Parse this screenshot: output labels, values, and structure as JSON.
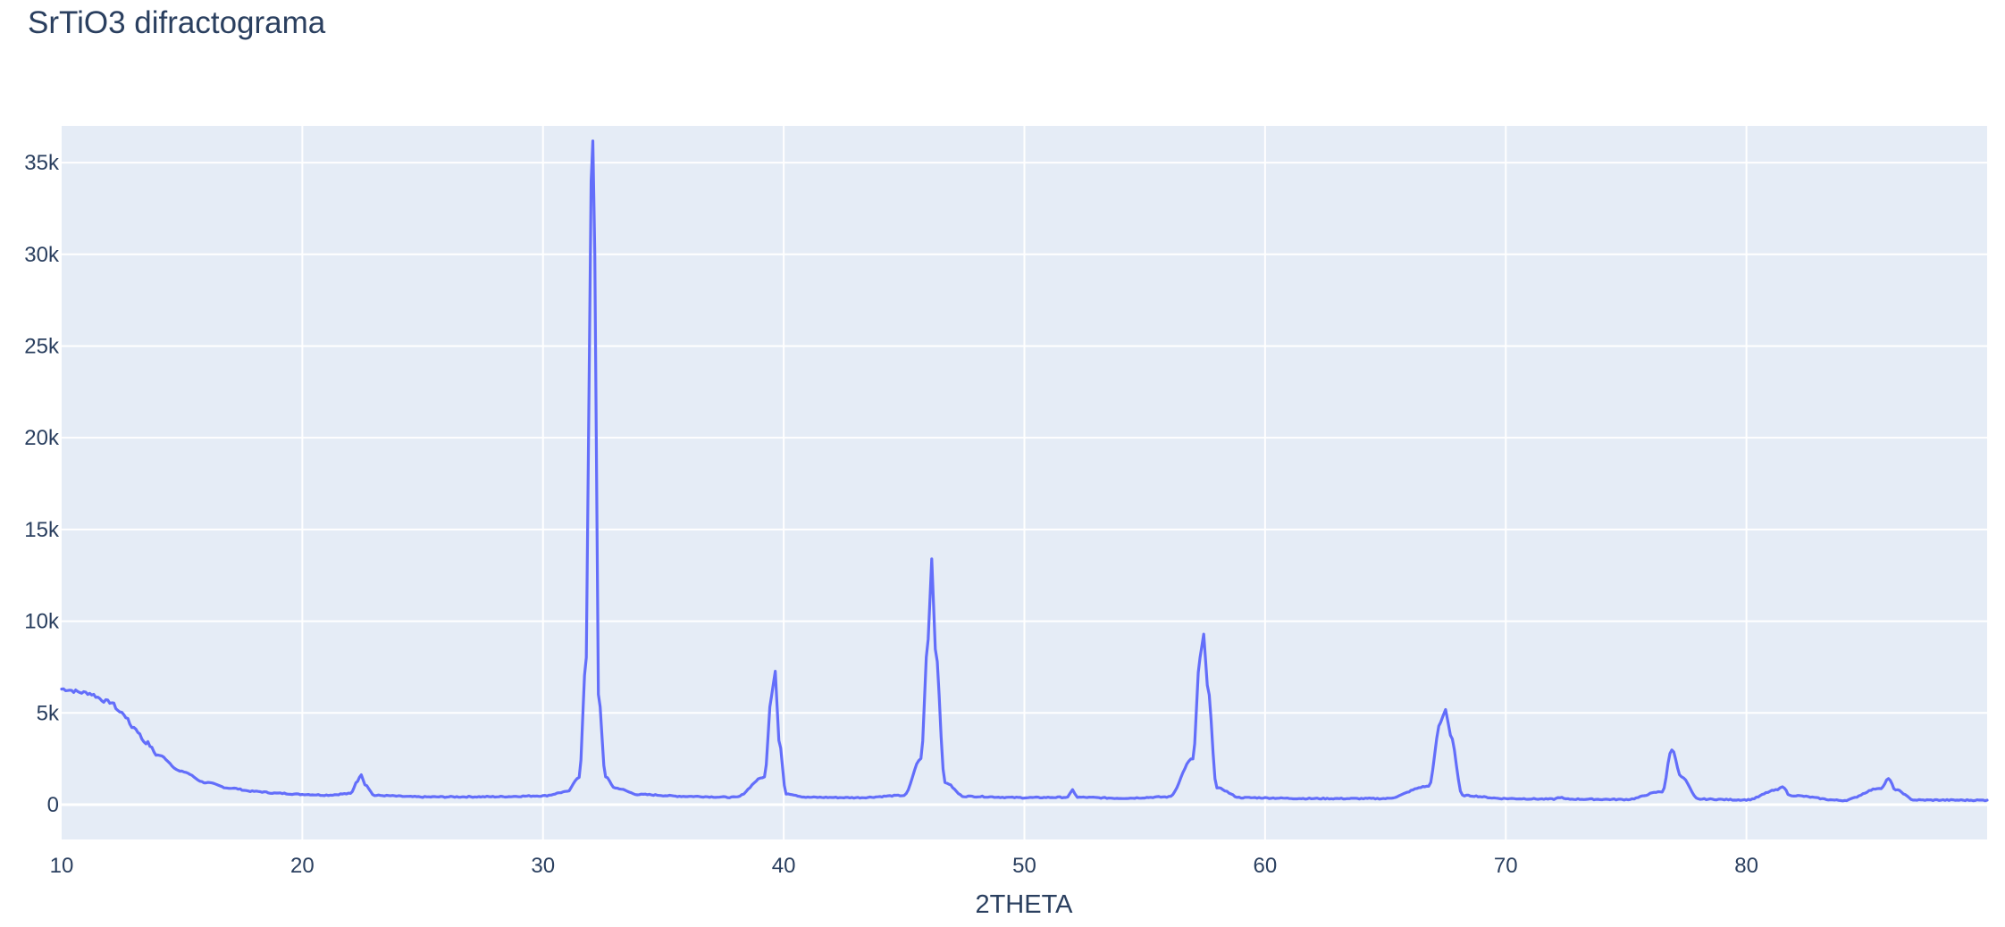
{
  "chart_data": {
    "type": "line",
    "title": "SrTiO3 difractograma",
    "xlabel": "2THETA",
    "ylabel": "",
    "xlim": [
      10,
      90
    ],
    "ylim": [
      -1900,
      37000
    ],
    "x_ticks": [
      10,
      20,
      30,
      40,
      50,
      60,
      70,
      80
    ],
    "x_tick_labels": [
      "10",
      "20",
      "30",
      "40",
      "50",
      "60",
      "70",
      "80"
    ],
    "y_ticks": [
      0,
      5000,
      10000,
      15000,
      20000,
      25000,
      30000,
      35000
    ],
    "y_tick_labels": [
      "0",
      "5k",
      "10k",
      "15k",
      "20k",
      "25k",
      "30k",
      "35k"
    ],
    "grid": true,
    "colors": {
      "line": "#636efa",
      "plot_bg": "#e5ecf6",
      "grid": "#ffffff",
      "text": "#2a3f5f"
    },
    "series": [
      {
        "x": [
          10.0,
          11.0,
          12.0,
          12.5,
          13.0,
          13.5,
          14.0,
          15.0,
          16.0,
          17.0,
          18.0,
          19.0,
          20.0,
          21.0,
          22.0,
          22.3,
          22.45,
          22.6,
          23.0,
          25.0,
          28.0,
          30.0,
          31.0,
          31.5,
          31.8,
          32.0,
          32.07,
          32.15,
          32.3,
          32.6,
          33.0,
          34.0,
          36.0,
          38.0,
          39.2,
          39.5,
          39.65,
          39.8,
          40.1,
          41.0,
          43.0,
          45.0,
          45.7,
          46.0,
          46.15,
          46.3,
          46.7,
          47.5,
          50.0,
          51.8,
          52.0,
          52.2,
          54.0,
          56.0,
          57.0,
          57.3,
          57.45,
          57.6,
          58.0,
          59.0,
          62.0,
          65.0,
          66.8,
          67.3,
          67.5,
          67.7,
          68.2,
          70.0,
          72.0,
          72.25,
          72.5,
          75.0,
          76.5,
          76.9,
          77.3,
          78.0,
          80.0,
          81.3,
          81.5,
          81.8,
          84.0,
          85.6,
          85.9,
          86.2,
          87.0,
          90.0
        ],
        "y": [
          6300,
          6100,
          5600,
          5000,
          4200,
          3400,
          2700,
          1800,
          1200,
          900,
          720,
          620,
          560,
          520,
          600,
          1300,
          1650,
          1100,
          500,
          420,
          430,
          480,
          700,
          1500,
          8000,
          34000,
          36200,
          30000,
          6000,
          1500,
          900,
          550,
          450,
          400,
          1500,
          6000,
          7300,
          3500,
          600,
          400,
          380,
          500,
          2500,
          9000,
          13400,
          8500,
          1200,
          450,
          380,
          400,
          800,
          400,
          350,
          420,
          2500,
          8000,
          9300,
          6500,
          900,
          380,
          330,
          330,
          1000,
          4500,
          5200,
          3800,
          500,
          330,
          300,
          400,
          300,
          280,
          700,
          3000,
          1500,
          300,
          260,
          800,
          1000,
          500,
          230,
          900,
          1400,
          800,
          250,
          240
        ]
      }
    ]
  }
}
